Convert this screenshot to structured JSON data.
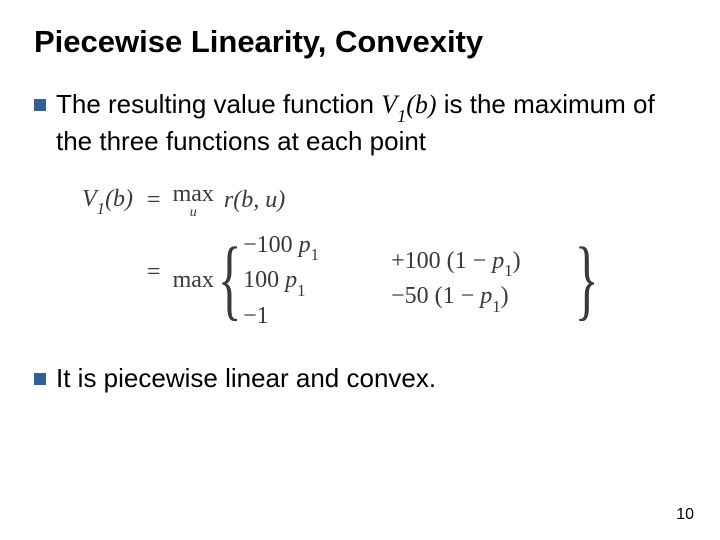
{
  "title": "Piecewise Linearity, Convexity",
  "bullet_color": "#355e92",
  "bullets": {
    "b1_pre": "The resulting value function ",
    "b1_func_html": "V<span class=\"subscr\">1</span>(b)",
    "b1_post": " is the maximum of the three functions at each point",
    "b2": "It is piecewise linear and convex."
  },
  "math": {
    "lhs": "V<span class=\"subscr\">1</span>(b)",
    "eq": "=",
    "line1_op_top": "max",
    "line1_op_sub": "u",
    "line1_rhs": "r(b, u)",
    "line2_op": "max",
    "cases_col1": {
      "r1": "−100 <span class=\"mi\">p</span><span class=\"subscr\">1</span>",
      "r2": "100 <span class=\"mi\">p</span><span class=\"subscr\">1</span>",
      "r3": "−1"
    },
    "cases_col2": {
      "r1": "+100 (1 − <span class=\"mi\">p</span><span class=\"subscr\">1</span>)",
      "r2": "−50 (1 − <span class=\"mi\">p</span><span class=\"subscr\">1</span>)",
      "r3": ""
    }
  },
  "page_number": "10"
}
